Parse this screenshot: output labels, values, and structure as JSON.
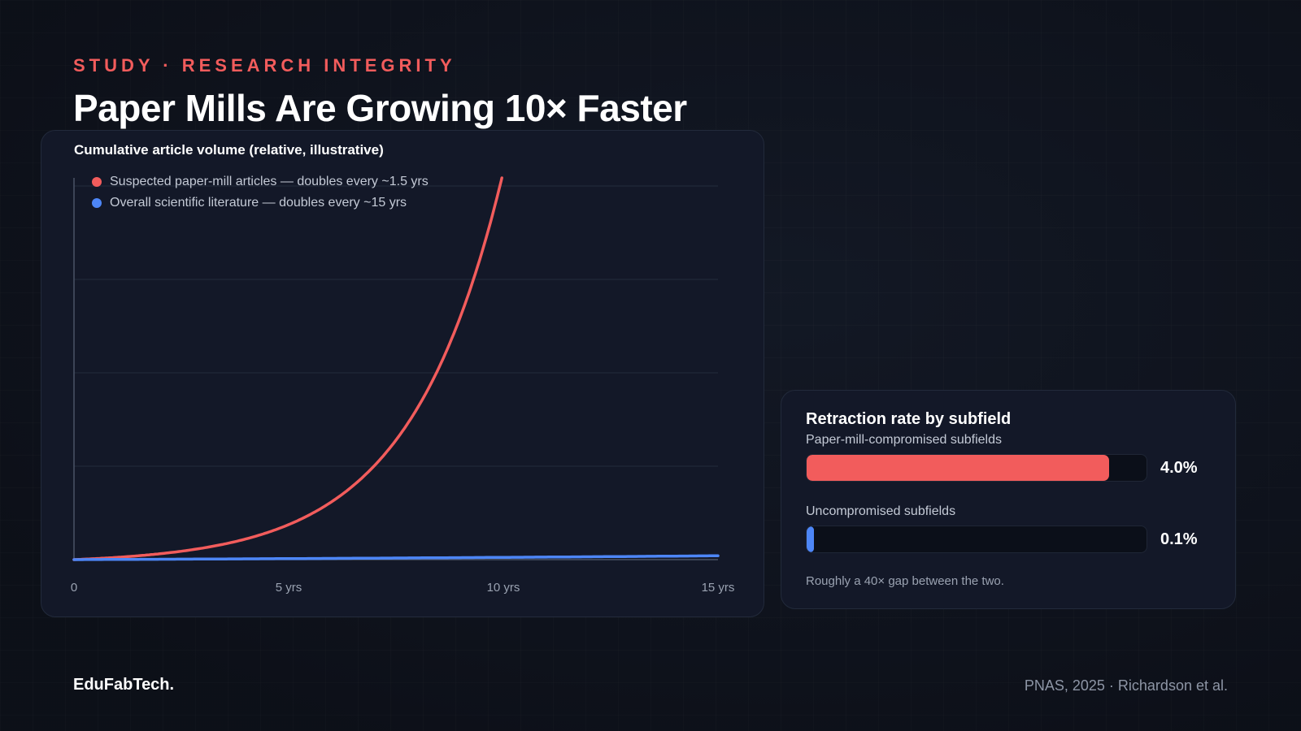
{
  "header": {
    "eyebrow": "STUDY · RESEARCH INTEGRITY",
    "title": "Paper Mills Are Growing 10× Faster"
  },
  "chart_data": {
    "type": "line",
    "title": "Cumulative article volume (relative, illustrative)",
    "x_ticks": [
      {
        "value": 0,
        "label": "0"
      },
      {
        "value": 5,
        "label": "5 yrs"
      },
      {
        "value": 10,
        "label": "10 yrs"
      },
      {
        "value": 15,
        "label": "15 yrs"
      }
    ],
    "xlim": [
      0,
      15
    ],
    "ylim": [
      1,
      100
    ],
    "grid": true,
    "legend_position": "top-left",
    "series": [
      {
        "name": "Suspected paper-mill articles — doubles every ~1.5 yrs",
        "color": "#f25c5c",
        "doubling_years": 1.5,
        "x": [
          0,
          1,
          2,
          3,
          4,
          5,
          6,
          7,
          8,
          9,
          9.7
        ],
        "y": [
          1,
          1.59,
          2.52,
          4,
          6.35,
          10.08,
          16,
          25.4,
          40.3,
          64,
          88.6
        ]
      },
      {
        "name": "Overall scientific literature — doubles every ~15 yrs",
        "color": "#4d86f7",
        "doubling_years": 15,
        "x": [
          0,
          3,
          6,
          9,
          12,
          15
        ],
        "y": [
          1,
          1.15,
          1.32,
          1.52,
          1.74,
          2
        ]
      }
    ]
  },
  "retraction": {
    "title": "Retraction rate by subfield",
    "max_percent": 4.5,
    "rows": [
      {
        "label": "Paper-mill-compromised subfields",
        "value": 4.0,
        "display": "4.0%",
        "color": "#f25c5c"
      },
      {
        "label": "Uncompromised subfields",
        "value": 0.1,
        "display": "0.1%",
        "color": "#4d86f7"
      }
    ],
    "note": "Roughly a 40× gap between the two."
  },
  "footer": {
    "brand": "EduFabTech.",
    "source": "PNAS, 2025 · Richardson et al."
  }
}
